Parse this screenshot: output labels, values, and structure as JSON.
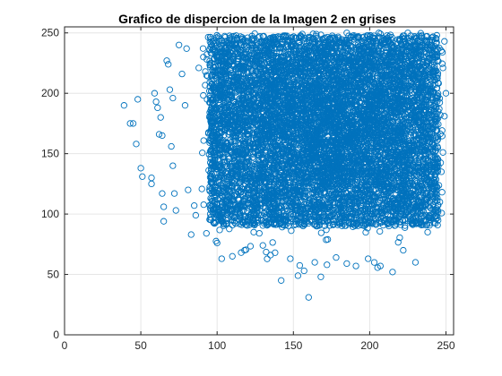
{
  "chart_data": {
    "type": "scatter",
    "title": "Grafico de dispercion de la Imagen 2 en grises",
    "xlabel": "",
    "ylabel": "",
    "xlim": [
      0,
      255
    ],
    "ylim": [
      0,
      255
    ],
    "xticks": [
      0,
      50,
      100,
      150,
      200,
      250
    ],
    "yticks": [
      0,
      50,
      100,
      150,
      200,
      250
    ],
    "x_tick_labels": [
      "0",
      "50",
      "100",
      "150",
      "200",
      "250"
    ],
    "y_tick_labels": [
      "0",
      "50",
      "100",
      "150",
      "200",
      "250"
    ],
    "grid": true,
    "legend": "none",
    "marker": "open circle",
    "series_color": "#0072BD",
    "dense_cloud": {
      "x_range": [
        95,
        245
      ],
      "y_range": [
        90,
        248
      ],
      "center": [
        175,
        180
      ],
      "approx_points": 20000
    },
    "outlier_points": [
      [
        39,
        190
      ],
      [
        43,
        175
      ],
      [
        45,
        175
      ],
      [
        48,
        195
      ],
      [
        47,
        158
      ],
      [
        50,
        138
      ],
      [
        51,
        131
      ],
      [
        57,
        130
      ],
      [
        57,
        125
      ],
      [
        59,
        200
      ],
      [
        60,
        193
      ],
      [
        61,
        188
      ],
      [
        63,
        180
      ],
      [
        64,
        165
      ],
      [
        62,
        166
      ],
      [
        64,
        117
      ],
      [
        65,
        106
      ],
      [
        65,
        94
      ],
      [
        67,
        227
      ],
      [
        68,
        224
      ],
      [
        69,
        203
      ],
      [
        71,
        196
      ],
      [
        70,
        156
      ],
      [
        71,
        140
      ],
      [
        72,
        117
      ],
      [
        73,
        103
      ],
      [
        75,
        240
      ],
      [
        77,
        216
      ],
      [
        80,
        237
      ],
      [
        79,
        190
      ],
      [
        81,
        120
      ],
      [
        83,
        83
      ],
      [
        85,
        107
      ],
      [
        86,
        99
      ],
      [
        88,
        221
      ],
      [
        91,
        230
      ],
      [
        93,
        84
      ],
      [
        96,
        95
      ],
      [
        100,
        76
      ],
      [
        103,
        63
      ],
      [
        110,
        65
      ],
      [
        118,
        70
      ],
      [
        124,
        85
      ],
      [
        130,
        74
      ],
      [
        135,
        66
      ],
      [
        138,
        68
      ],
      [
        142,
        45
      ],
      [
        148,
        63
      ],
      [
        153,
        49
      ],
      [
        157,
        53
      ],
      [
        160,
        31
      ],
      [
        164,
        60
      ],
      [
        168,
        48
      ],
      [
        172,
        58
      ],
      [
        178,
        64
      ],
      [
        185,
        59
      ],
      [
        191,
        57
      ],
      [
        199,
        63
      ],
      [
        207,
        57
      ],
      [
        215,
        52
      ],
      [
        222,
        70
      ],
      [
        230,
        60
      ],
      [
        238,
        85
      ],
      [
        243,
        98
      ],
      [
        246,
        110
      ],
      [
        247,
        135
      ],
      [
        248,
        151
      ],
      [
        249,
        181
      ],
      [
        250,
        200
      ],
      [
        248,
        221
      ],
      [
        249,
        243
      ],
      [
        244,
        248
      ],
      [
        225,
        250
      ],
      [
        206,
        250
      ],
      [
        185,
        250
      ],
      [
        165,
        249
      ],
      [
        140,
        247
      ],
      [
        120,
        246
      ],
      [
        103,
        244
      ],
      [
        100,
        240
      ],
      [
        95,
        236
      ]
    ]
  }
}
